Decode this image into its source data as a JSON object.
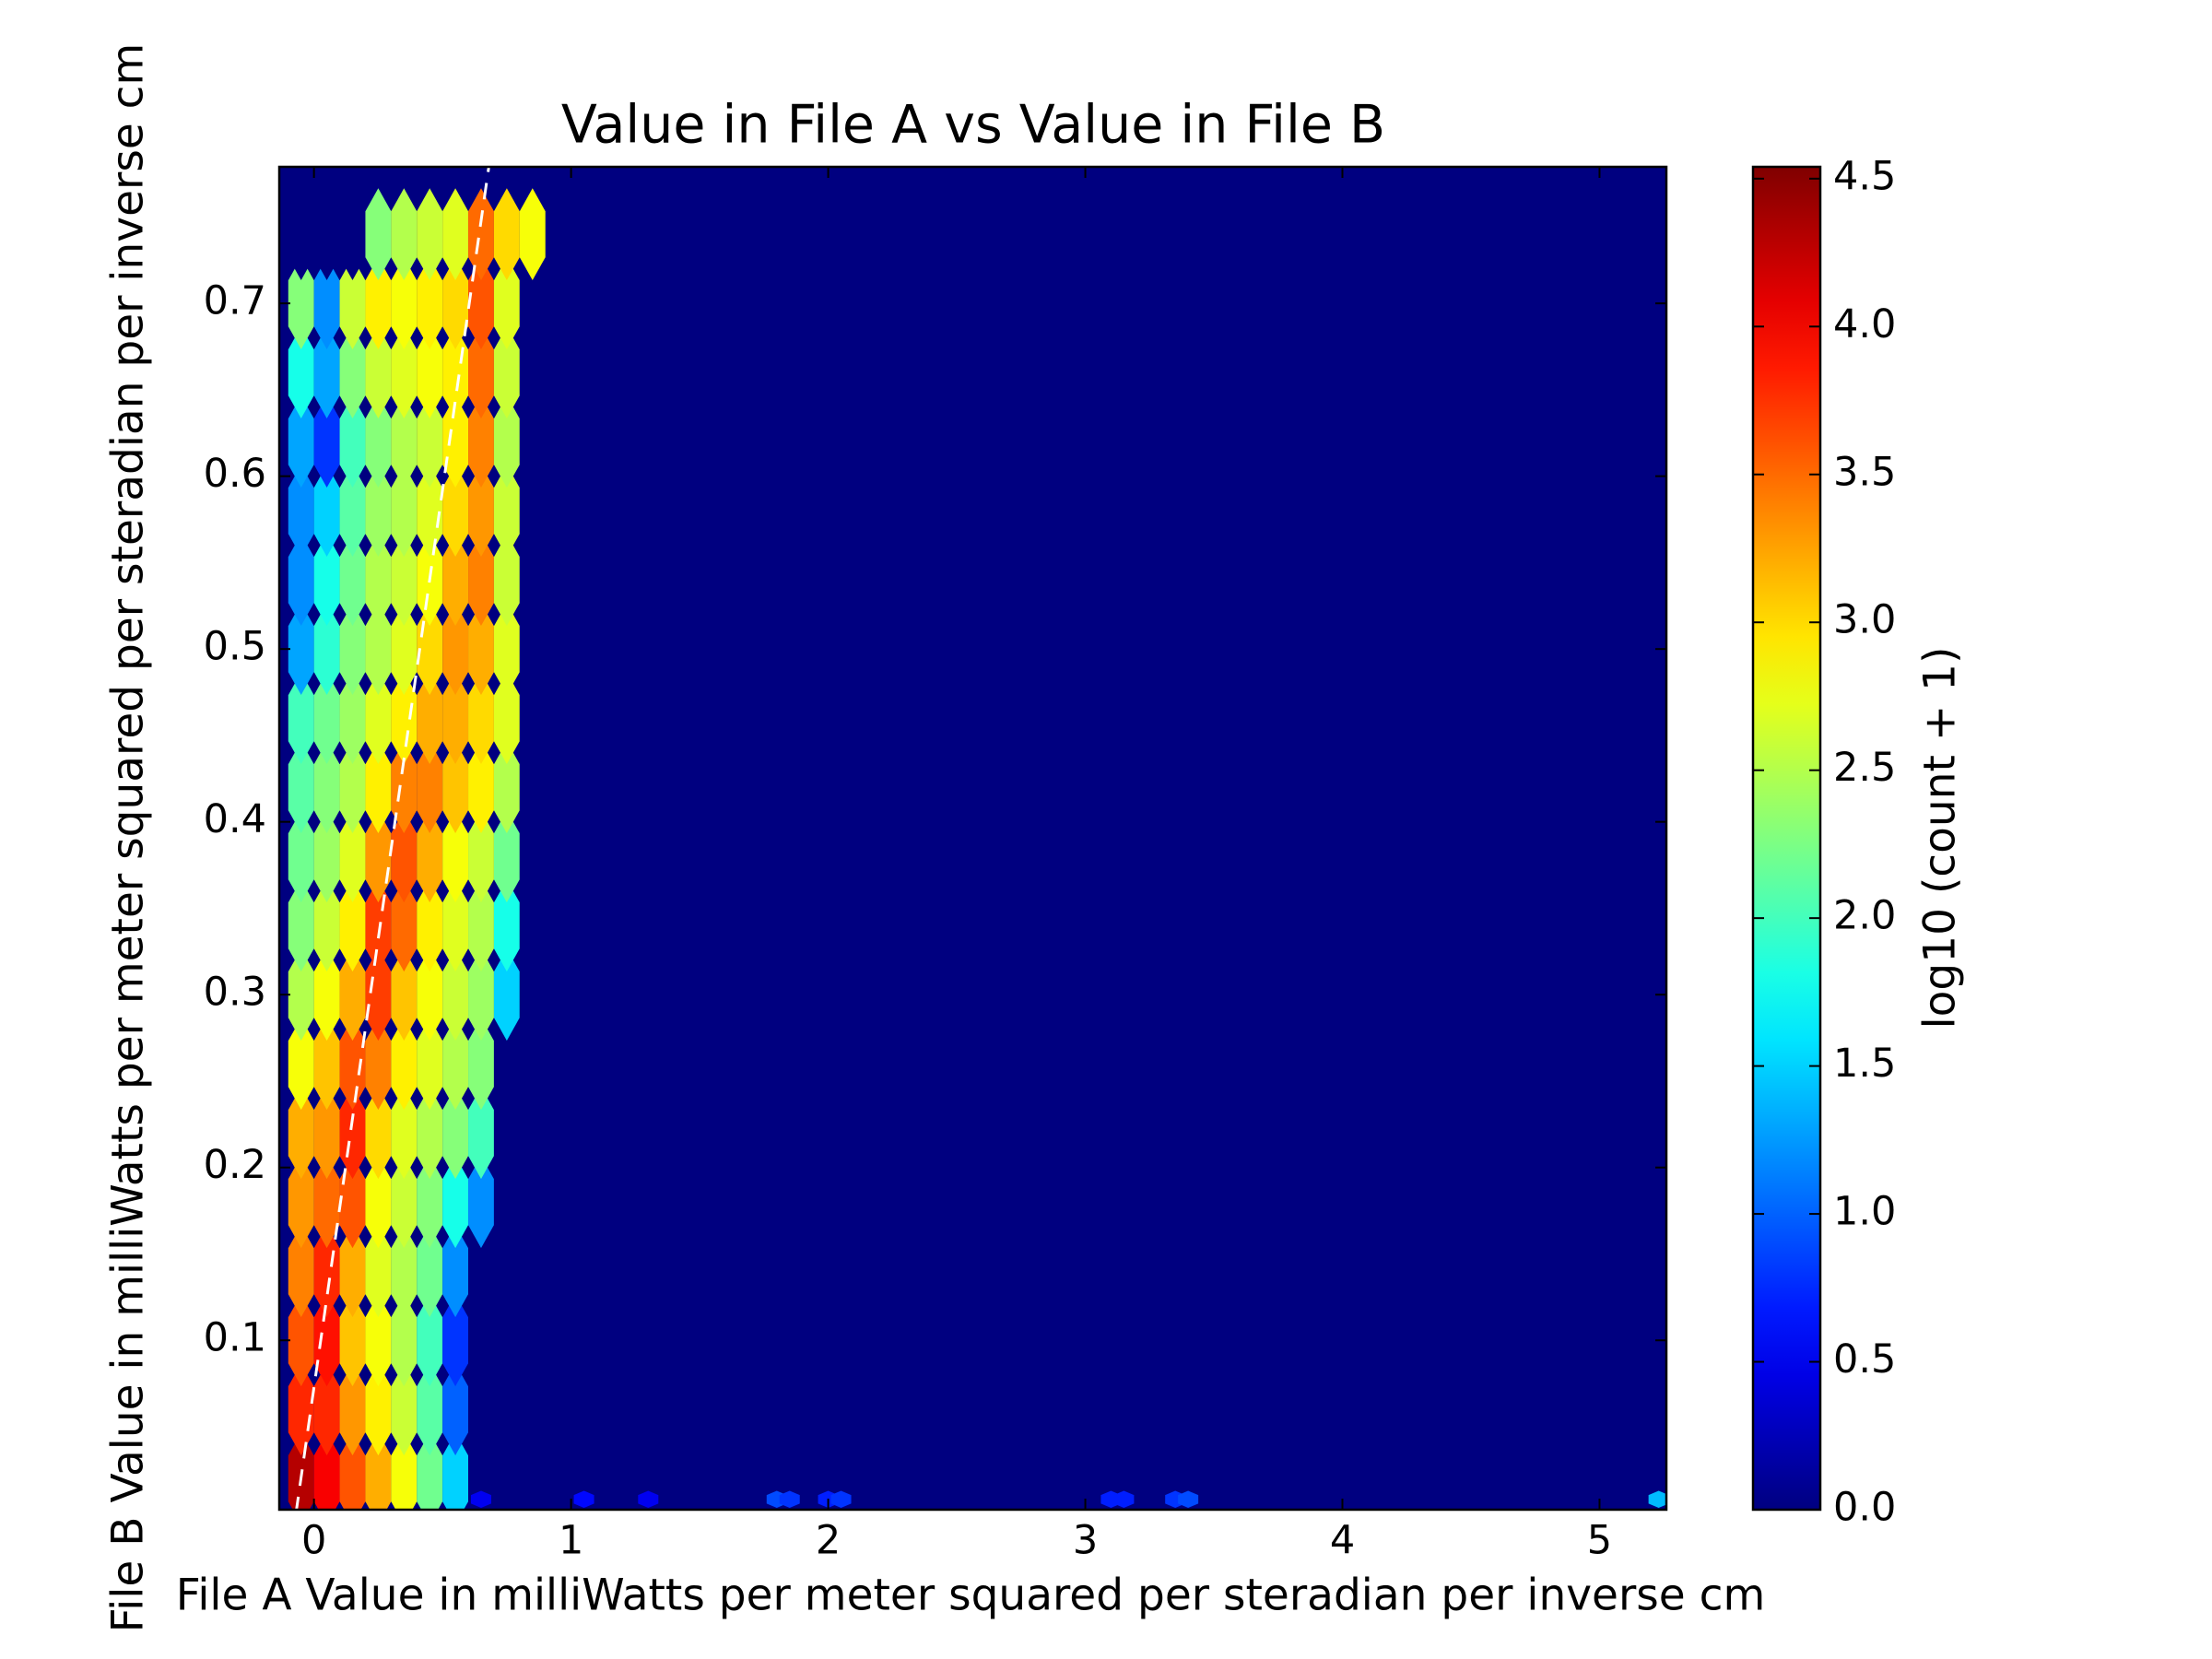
{
  "chart_data": {
    "type": "hexbin",
    "title": "Value in File A vs Value in File B",
    "xlabel": "File A Value in milliWatts per meter squared per steradian per inverse cm",
    "ylabel": "File B Value in milliWatts per meter squared per steradian per inverse cm",
    "xlim": [
      -0.135,
      5.26
    ],
    "ylim": [
      0.002,
      0.779
    ],
    "xticks": [
      0,
      1,
      2,
      3,
      4,
      5
    ],
    "yticks": [
      0.1,
      0.2,
      0.3,
      0.4,
      0.5,
      0.6,
      0.7
    ],
    "colormap": "jet",
    "colorbar": {
      "label": "log10 (count + 1)",
      "clim": [
        0,
        4.54
      ],
      "ticks": [
        {
          "value": 0,
          "label": "0.0"
        },
        {
          "value": 0.5,
          "label": "0.5"
        },
        {
          "value": 1,
          "label": "1.0"
        },
        {
          "value": 1.5,
          "label": "1.5"
        },
        {
          "value": 2,
          "label": "2.0"
        },
        {
          "value": 2.5,
          "label": "2.5"
        },
        {
          "value": 3,
          "label": "3.0"
        },
        {
          "value": 3.5,
          "label": "3.5"
        },
        {
          "value": 4,
          "label": "4.0"
        },
        {
          "value": 4.5,
          "label": "4.5"
        }
      ]
    },
    "cell_width": 0.1,
    "cell_height": 0.04,
    "x": [
      -0.05,
      0.05,
      0.15,
      0.25,
      0.35,
      0.45,
      0.55,
      0.65,
      0.75,
      0.85
    ],
    "y": [
      0.02,
      0.06,
      0.1,
      0.14,
      0.18,
      0.22,
      0.26,
      0.3,
      0.34,
      0.38,
      0.42,
      0.46,
      0.5,
      0.54,
      0.58,
      0.62,
      0.66,
      0.7,
      0.74
    ],
    "values": [
      [
        4.3,
        4.0,
        3.6,
        3.2,
        2.8,
        2.2,
        1.5,
        0,
        0,
        0
      ],
      [
        3.8,
        3.8,
        3.3,
        2.9,
        2.6,
        2.1,
        1.0,
        0,
        0,
        0
      ],
      [
        3.6,
        3.9,
        3.1,
        2.8,
        2.5,
        2.0,
        0.8,
        0,
        0,
        0
      ],
      [
        3.4,
        3.8,
        3.2,
        2.7,
        2.5,
        2.2,
        1.2,
        0,
        0,
        0
      ],
      [
        3.3,
        3.5,
        3.6,
        2.8,
        2.6,
        2.3,
        1.8,
        1.2,
        0,
        0
      ],
      [
        3.2,
        3.3,
        3.8,
        3.0,
        2.7,
        2.5,
        2.3,
        2.0,
        0,
        0
      ],
      [
        2.8,
        3.1,
        3.6,
        3.4,
        2.9,
        2.7,
        2.5,
        2.3,
        0,
        0
      ],
      [
        2.5,
        2.8,
        3.2,
        3.7,
        3.1,
        2.8,
        2.6,
        2.4,
        1.5,
        0
      ],
      [
        2.3,
        2.6,
        2.9,
        3.7,
        3.5,
        2.9,
        2.7,
        2.5,
        1.8,
        0
      ],
      [
        2.2,
        2.4,
        2.7,
        3.3,
        3.6,
        3.2,
        2.8,
        2.6,
        2.2,
        0
      ],
      [
        2.1,
        2.3,
        2.5,
        2.9,
        3.4,
        3.4,
        3.1,
        2.9,
        2.5,
        0
      ],
      [
        2.0,
        2.2,
        2.4,
        2.7,
        2.9,
        3.2,
        3.2,
        3.0,
        2.7,
        0
      ],
      [
        1.3,
        1.9,
        2.3,
        2.5,
        2.7,
        3.0,
        3.3,
        3.2,
        2.7,
        0
      ],
      [
        1.2,
        1.8,
        2.2,
        2.5,
        2.6,
        2.8,
        3.2,
        3.4,
        2.6,
        0
      ],
      [
        1.2,
        1.5,
        2.1,
        2.4,
        2.5,
        2.7,
        3.0,
        3.3,
        2.6,
        0
      ],
      [
        1.3,
        0.8,
        2.0,
        2.3,
        2.5,
        2.6,
        2.9,
        3.4,
        2.5,
        0
      ],
      [
        1.8,
        1.3,
        2.3,
        2.6,
        2.7,
        2.8,
        2.9,
        3.5,
        2.6,
        0
      ],
      [
        2.3,
        1.2,
        2.6,
        2.9,
        2.8,
        2.9,
        3.0,
        3.6,
        2.7,
        0
      ],
      [
        0,
        0,
        0,
        2.3,
        2.5,
        2.6,
        2.7,
        3.5,
        3.0,
        2.8
      ]
    ],
    "sparse_cells": {
      "x": [
        0.65,
        1.05,
        1.3,
        1.8,
        1.85,
        2.0,
        2.05,
        3.1,
        3.15,
        3.35,
        3.4,
        5.23
      ],
      "y": [
        0.008,
        0.008,
        0.008,
        0.008,
        0.008,
        0.008,
        0.008,
        0.008,
        0.008,
        0.008,
        0.008,
        0.008
      ],
      "values": [
        0.5,
        0.6,
        0.5,
        0.9,
        0.8,
        0.7,
        0.8,
        0.7,
        0.7,
        0.8,
        0.9,
        1.4
      ]
    },
    "reference_line": {
      "x": [
        -0.07,
        0.68
      ],
      "y": [
        0.0,
        0.779
      ],
      "color": "#ffffff"
    }
  }
}
